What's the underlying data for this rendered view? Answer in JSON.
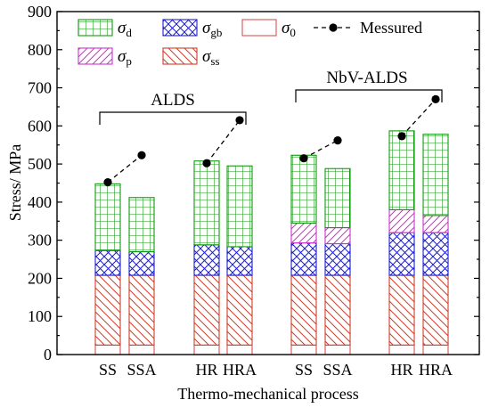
{
  "chart_data": {
    "type": "bar",
    "stacked": true,
    "xlabel": "Thermo-mechanical process",
    "ylabel": "Stress/ MPa",
    "ylim": [
      0,
      900
    ],
    "yticks": [
      0,
      100,
      200,
      300,
      400,
      500,
      600,
      700,
      800,
      900
    ],
    "categories": [
      "SS",
      "SSA",
      "HR",
      "HRA",
      "SS",
      "SSA",
      "HR",
      "HRA"
    ],
    "groups": [
      {
        "label": "ALDS",
        "categories": [
          0,
          1,
          2,
          3
        ]
      },
      {
        "label": "NbV-ALDS",
        "categories": [
          4,
          5,
          6,
          7
        ]
      }
    ],
    "legend": {
      "placement": "top-left",
      "entries": [
        {
          "key": "d",
          "symbol": "σ",
          "sub": "d"
        },
        {
          "key": "gb",
          "symbol": "σ",
          "sub": "gb"
        },
        {
          "key": "0",
          "symbol": "σ",
          "sub": "0"
        },
        {
          "key": "meas",
          "text": "Messured"
        },
        {
          "key": "p",
          "symbol": "σ",
          "sub": "p"
        },
        {
          "key": "ss",
          "symbol": "σ",
          "sub": "ss"
        }
      ]
    },
    "series": [
      {
        "key": "0",
        "name": "σ0",
        "color": "#d9534f",
        "pattern": "none",
        "values": [
          25,
          25,
          25,
          25,
          25,
          25,
          25,
          25
        ]
      },
      {
        "key": "ss",
        "name": "σss",
        "color": "#cc3f2b",
        "pattern": "diag-back",
        "values": [
          183,
          183,
          183,
          183,
          183,
          183,
          183,
          183
        ]
      },
      {
        "key": "gb",
        "name": "σgb",
        "color": "#1f1fcc",
        "pattern": "cross",
        "values": [
          65,
          62,
          80,
          75,
          85,
          83,
          112,
          112
        ]
      },
      {
        "key": "p",
        "name": "σp",
        "color": "#cc33cc",
        "pattern": "diag-fwd",
        "values": [
          0,
          0,
          0,
          0,
          52,
          42,
          60,
          45
        ]
      },
      {
        "key": "d",
        "name": "σd",
        "color": "#119911",
        "pattern": "grid",
        "values": [
          175,
          142,
          220,
          212,
          178,
          155,
          207,
          213
        ]
      }
    ],
    "measured": {
      "name": "Messured",
      "values": [
        452,
        523,
        502,
        615,
        515,
        562,
        573,
        670
      ],
      "segments": [
        [
          0,
          1
        ],
        [
          2,
          3
        ],
        [
          4,
          5
        ],
        [
          6,
          7
        ]
      ]
    }
  }
}
